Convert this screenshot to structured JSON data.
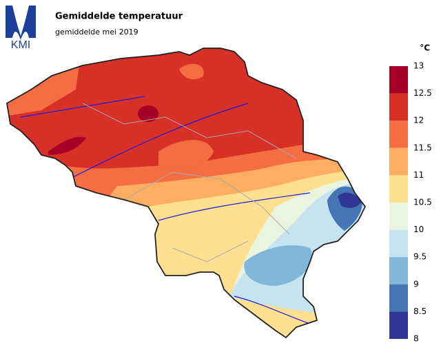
{
  "logo": {
    "text": "KMI"
  },
  "header": {
    "title": "Gemiddelde temperatuur",
    "subtitle": "gemiddelde mei 2019"
  },
  "legend": {
    "unit": "°C",
    "ticks": [
      13,
      12.5,
      12,
      11.5,
      11,
      10.5,
      10,
      9.5,
      9,
      8.5,
      8
    ],
    "colors": [
      "#a50026",
      "#d73027",
      "#f46d43",
      "#fdae61",
      "#fee090",
      "#eaf5e0",
      "#c6e3f0",
      "#80b6d8",
      "#4575b4",
      "#313695"
    ]
  }
}
